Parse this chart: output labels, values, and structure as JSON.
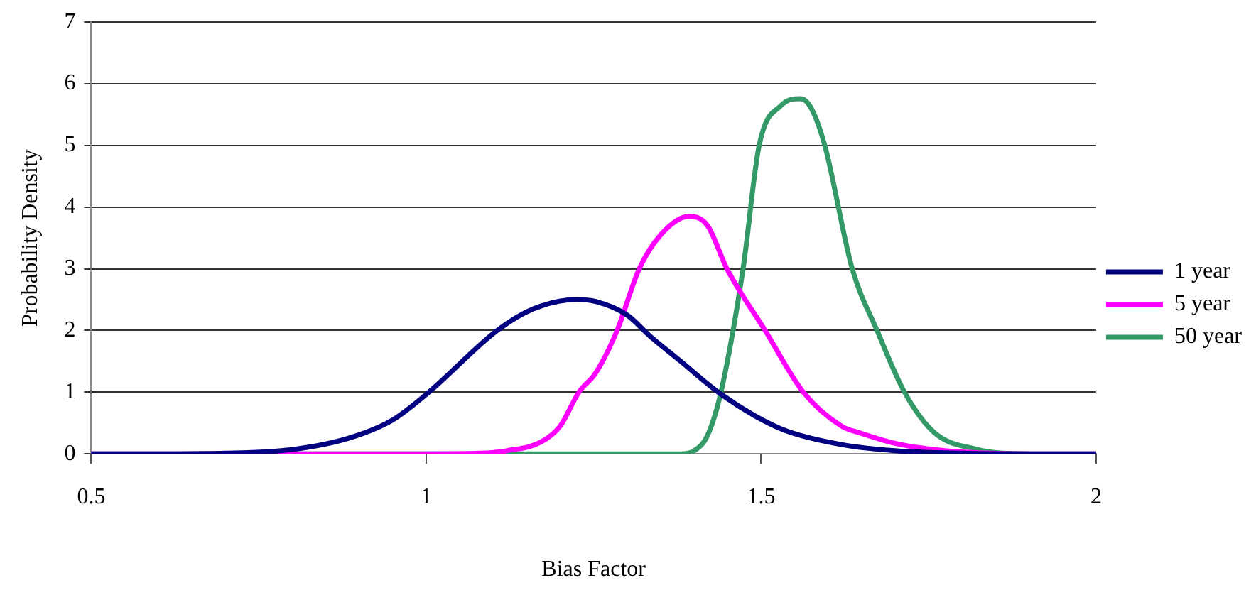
{
  "chart_data": {
    "type": "line",
    "xlabel": "Bias Factor",
    "ylabel": "Probability Density",
    "xlim": [
      0.5,
      2
    ],
    "xticks": [
      0.5,
      1,
      1.5,
      2
    ],
    "ylim": [
      0,
      7
    ],
    "yticks": [
      0,
      1,
      2,
      3,
      4,
      5,
      6,
      7
    ],
    "grid": "y",
    "legend": "right",
    "marker": "none",
    "line_style": "solid",
    "series": [
      {
        "name": "1 year",
        "color": "#000080",
        "x": [
          0.5,
          0.6,
          0.7,
          0.8,
          0.886,
          0.95,
          1.004,
          1.106,
          1.16,
          1.224,
          1.253,
          1.3,
          1.334,
          1.38,
          1.436,
          1.49,
          1.538,
          1.62,
          1.7,
          1.8,
          1.9,
          2
        ],
        "values": [
          0,
          0,
          0.01,
          0.07,
          0.26,
          0.55,
          1,
          2,
          2.35,
          2.5,
          2.47,
          2.25,
          1.91,
          1.5,
          1,
          0.62,
          0.37,
          0.15,
          0.05,
          0.01,
          0,
          0
        ]
      },
      {
        "name": "5 year",
        "color": "#ff00ff",
        "x": [
          0.5,
          1,
          1.08,
          1.12,
          1.171,
          1.2,
          1.228,
          1.253,
          1.285,
          1.318,
          1.35,
          1.392,
          1.42,
          1.449,
          1.506,
          1.563,
          1.62,
          1.65,
          1.7,
          1.75,
          1.8,
          1.9,
          2
        ],
        "values": [
          0,
          0,
          0.01,
          0.05,
          0.19,
          0.45,
          1,
          1.31,
          2,
          3,
          3.55,
          3.85,
          3.7,
          3,
          2,
          1,
          0.45,
          0.33,
          0.17,
          0.08,
          0.03,
          0,
          0
        ]
      },
      {
        "name": "50 year",
        "color": "#339966",
        "x": [
          0.5,
          1.38,
          1.4,
          1.42,
          1.44,
          1.473,
          1.497,
          1.53,
          1.559,
          1.575,
          1.595,
          1.636,
          1.673,
          1.714,
          1.759,
          1.823,
          1.85,
          1.9,
          2
        ],
        "values": [
          0,
          0,
          0.05,
          0.3,
          1,
          3,
          5,
          5.65,
          5.76,
          5.6,
          5,
          3,
          2,
          1,
          0.34,
          0.07,
          0.02,
          0,
          0
        ]
      }
    ]
  }
}
